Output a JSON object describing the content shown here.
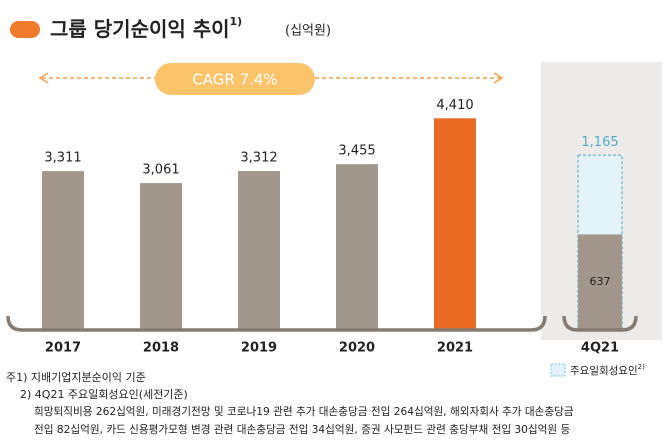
{
  "title": "그룹 당기순이익 추이",
  "title_note": "1)",
  "unit": "(십억원)",
  "chart_data": [
    {
      "type": "bar",
      "categories": [
        "2017",
        "2018",
        "2019",
        "2020",
        "2021"
      ],
      "values": [
        3311,
        3061,
        3312,
        3455,
        4410
      ],
      "value_labels": [
        "3,311",
        "3,061",
        "3,312",
        "3,455",
        "4,410"
      ],
      "colors": [
        "#a1978d",
        "#a1978d",
        "#a1978d",
        "#a1978d",
        "#ea6a23"
      ],
      "ylim": [
        0,
        5000
      ],
      "annotation": "CAGR 7.4%"
    },
    {
      "type": "overlay_bar",
      "categories": [
        "4Q21"
      ],
      "series": [
        {
          "name": "주요일회성요인",
          "legend_note": "2)",
          "color": "#e3f2f8",
          "values": [
            1165
          ],
          "value_labels": [
            "1,165"
          ]
        },
        {
          "color": "#a1978d",
          "values": [
            637
          ]
        }
      ],
      "ylim": [
        0,
        1600
      ]
    }
  ],
  "notes": [
    "주1) 지배기업지분순이익 기준",
    "2) 4Q21 주요일회성요인(세전기준)",
    "희망퇴직비용 262십억원, 미래경기전망 및 코로나19 관련 추가 대손충당금 전입 264십억원, 해외자회사 추가 대손충당금",
    "전입 82십억원, 카드 신용평가모형 변경 관련 대손충당금 전입 34십억원, 증권 사모펀드 관련 충당부채 전입 30십억원 등"
  ]
}
